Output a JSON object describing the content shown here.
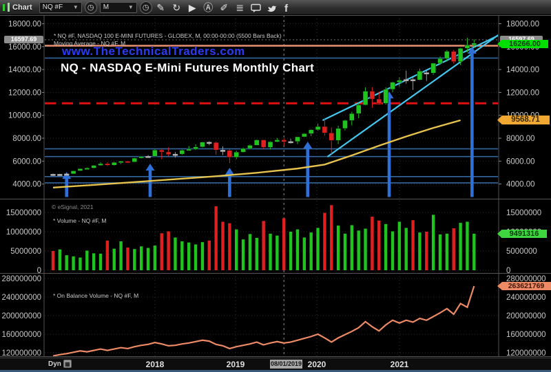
{
  "toolbar": {
    "app_label": "Chart",
    "symbol_value": "NQ #F",
    "interval_value": "M",
    "icons": [
      {
        "name": "symbol-lookup-icon",
        "glyph": "◷"
      },
      {
        "name": "interval-clock-icon",
        "glyph": "◷"
      },
      {
        "name": "draw-pencil-icon",
        "glyph": "✎"
      },
      {
        "name": "refresh-icon",
        "glyph": "↻"
      },
      {
        "name": "play-icon",
        "glyph": "▶"
      },
      {
        "name": "annotation-a-icon",
        "glyph": "Ⓐ"
      },
      {
        "name": "eraser-icon",
        "glyph": "✐"
      },
      {
        "name": "quote-list-icon",
        "glyph": "≣"
      },
      {
        "name": "chat-bubble-icon",
        "glyph": "svg-chat"
      },
      {
        "name": "twitter-icon",
        "glyph": "svg-twitter"
      },
      {
        "name": "facebook-icon",
        "glyph": "svg-facebook"
      }
    ]
  },
  "overlays": {
    "symbol_line": "* NQ #F, NASDAQ 100 E-MINI FUTURES - GLOBEX, M, 00:00-00:00 (5500 Bars Back)",
    "ma_line": "Moving Average - NQ #F, M",
    "website": "www.TheTechnicalTraders.com",
    "title": "NQ - NASDAQ E-Mini Futures Monthly Chart",
    "copyright": "© eSignal, 2021",
    "volume_label": "* Volume - NQ #F, M",
    "obv_label": "* On Balance Volume - NQ #F, M"
  },
  "badges": {
    "last_price": "16597.69",
    "alt_price": "16266.00",
    "ma_value": "9568.71",
    "volume_value": "9491316",
    "obv_value": "263621769",
    "date_selected": "08/01/2019"
  },
  "axes": {
    "price_ticks": [
      "18000.00",
      "16000.00",
      "14000.00",
      "12000.00",
      "10000.00",
      "8000.00",
      "6000.00",
      "4000.00"
    ],
    "volume_ticks": [
      "15000000",
      "10000000",
      "5000000",
      "0"
    ],
    "obv_ticks": [
      "280000000",
      "240000000",
      "200000000",
      "160000000",
      "120000000"
    ],
    "years": [
      "2018",
      "2019",
      "2020",
      "2021"
    ]
  },
  "bottom": {
    "dyn_label": "Dyn"
  },
  "colors": {
    "up": "#1fc41f",
    "down": "#e02020",
    "doji": "#b8b8b8",
    "ma": "#e6c34c",
    "obv_line": "#ee8a66",
    "channel": "#45c8f0",
    "support": "#33679f",
    "resistance_red": "#e01010",
    "resistance_salmon": "#e89070",
    "arrow": "#2f6fd8"
  },
  "chart_data": {
    "type": "candlestick",
    "title": "NQ - NASDAQ E-Mini Futures Monthly Chart",
    "symbol": "NQ #F",
    "interval": "Monthly",
    "start_month": "2016-10",
    "panes": [
      "price+moving-average",
      "volume",
      "on-balance-volume"
    ],
    "price_axis_ticks": [
      18000,
      16000,
      14000,
      12000,
      10000,
      8000,
      6000,
      4000
    ],
    "volume_axis_ticks_millions": [
      15,
      10,
      5,
      0
    ],
    "obv_axis_ticks_millions": [
      280,
      240,
      200,
      160,
      120
    ],
    "last_price": 16597.69,
    "alt_price": 16266.0,
    "ma_last": 9568.71,
    "volume_last": 9491316,
    "obv_last": 263621769,
    "candles": [
      [
        4860,
        4910,
        4700,
        4825
      ],
      [
        4825,
        4895,
        4745,
        4855
      ],
      [
        4855,
        4940,
        4800,
        4885
      ],
      [
        4885,
        5160,
        4875,
        5150
      ],
      [
        5150,
        5360,
        5140,
        5340
      ],
      [
        5340,
        5450,
        5290,
        5395
      ],
      [
        5395,
        5660,
        5350,
        5625
      ],
      [
        5625,
        5900,
        5600,
        5780
      ],
      [
        5780,
        5905,
        5555,
        5645
      ],
      [
        5645,
        5945,
        5605,
        5890
      ],
      [
        5890,
        6025,
        5750,
        5990
      ],
      [
        5990,
        6020,
        5830,
        5925
      ],
      [
        5925,
        6295,
        5915,
        6260
      ],
      [
        6260,
        6445,
        6230,
        6390
      ],
      [
        6390,
        6525,
        6320,
        6425
      ],
      [
        6425,
        7035,
        6415,
        6970
      ],
      [
        6970,
        7055,
        6165,
        6800
      ],
      [
        6800,
        7190,
        6445,
        6580
      ],
      [
        6580,
        6795,
        6310,
        6615
      ],
      [
        6615,
        7005,
        6550,
        6950
      ],
      [
        6950,
        7315,
        6930,
        7045
      ],
      [
        7045,
        7465,
        6980,
        7240
      ],
      [
        7240,
        7695,
        7190,
        7655
      ],
      [
        7655,
        7735,
        7380,
        7630
      ],
      [
        7630,
        7705,
        6575,
        6960
      ],
      [
        6960,
        7295,
        6530,
        6940
      ],
      [
        6940,
        7050,
        5820,
        6330
      ],
      [
        6330,
        6915,
        6165,
        6790
      ],
      [
        6790,
        7175,
        6740,
        7100
      ],
      [
        7100,
        7445,
        7030,
        7380
      ],
      [
        7380,
        7885,
        7370,
        7850
      ],
      [
        7850,
        7865,
        7050,
        7210
      ],
      [
        7210,
        7735,
        7010,
        7690
      ],
      [
        7690,
        8015,
        7640,
        7855
      ],
      [
        7855,
        7995,
        7360,
        7690
      ],
      [
        7690,
        7955,
        7540,
        7715
      ],
      [
        7715,
        8125,
        7490,
        8120
      ],
      [
        8120,
        8445,
        8100,
        8400
      ],
      [
        8400,
        8785,
        8180,
        8735
      ],
      [
        8735,
        9275,
        8660,
        9020
      ],
      [
        9020,
        9765,
        8220,
        8460
      ],
      [
        8460,
        8945,
        6630,
        7810
      ],
      [
        7810,
        9085,
        7490,
        8850
      ],
      [
        8850,
        9625,
        8680,
        9555
      ],
      [
        9555,
        10310,
        9110,
        10155
      ],
      [
        10155,
        11070,
        9740,
        10905
      ],
      [
        10905,
        12430,
        10870,
        12110
      ],
      [
        12110,
        12450,
        10660,
        11420
      ],
      [
        11420,
        12070,
        10920,
        11050
      ],
      [
        11050,
        12440,
        10940,
        12270
      ],
      [
        12270,
        12930,
        12030,
        12890
      ],
      [
        12890,
        13305,
        12500,
        13070
      ],
      [
        13100,
        13900,
        12760,
        13130
      ],
      [
        13130,
        13325,
        12210,
        13090
      ],
      [
        13090,
        14075,
        13050,
        13860
      ],
      [
        13730,
        13895,
        13000,
        13690
      ],
      [
        13690,
        14580,
        13540,
        14550
      ],
      [
        14550,
        15135,
        14430,
        14960
      ],
      [
        14960,
        15700,
        14700,
        15580
      ],
      [
        15580,
        15710,
        14510,
        14690
      ],
      [
        14690,
        15900,
        14385,
        15850
      ],
      [
        15850,
        16770,
        15495,
        16135
      ],
      [
        16135,
        16630,
        15940,
        16300
      ]
    ],
    "volume_millions": [
      5.0,
      5.4,
      3.9,
      3.6,
      3.3,
      5.1,
      4.4,
      4.3,
      7.7,
      5.6,
      7.5,
      5.9,
      5.5,
      6.2,
      5.8,
      6.4,
      9.6,
      10.1,
      8.5,
      7.5,
      7.2,
      6.7,
      7.3,
      7.7,
      16.6,
      12.6,
      12.2,
      10.6,
      8.0,
      9.4,
      8.4,
      12.8,
      9.5,
      9.0,
      13.5,
      10.0,
      10.6,
      8.5,
      9.8,
      11.0,
      14.9,
      16.9,
      11.6,
      9.5,
      11.7,
      10.3,
      10.8,
      13.9,
      12.9,
      12.0,
      10.1,
      12.6,
      11.0,
      13.0,
      9.8,
      10.0,
      14.4,
      9.3,
      9.5,
      10.9,
      12.3,
      12.6,
      9.49
    ],
    "obv_millions": [
      113,
      116,
      118,
      121,
      124,
      122,
      125,
      128,
      125,
      128,
      131,
      129,
      133,
      136,
      138,
      142,
      139,
      135,
      136,
      139,
      141,
      144,
      147,
      145,
      138,
      135,
      129,
      133,
      136,
      139,
      143,
      137,
      141,
      144,
      141,
      143,
      147,
      151,
      155,
      160,
      152,
      143,
      152,
      159,
      166,
      174,
      187,
      176,
      167,
      180,
      190,
      184,
      190,
      186,
      194,
      190,
      198,
      206,
      215,
      203,
      226,
      218,
      263.62
    ],
    "ma_anchors": [
      [
        0,
        3690
      ],
      [
        6,
        3920
      ],
      [
        12,
        4170
      ],
      [
        18,
        4420
      ],
      [
        24,
        4680
      ],
      [
        30,
        4980
      ],
      [
        36,
        5350
      ],
      [
        40,
        5700
      ],
      [
        44,
        6500
      ],
      [
        48,
        7350
      ],
      [
        52,
        8150
      ],
      [
        56,
        8900
      ],
      [
        60,
        9569
      ]
    ],
    "levels": {
      "salmon_resistance": 16080,
      "red_dashed_resistance": 11050,
      "blue_support": [
        15000,
        7070,
        6400,
        4650,
        4100
      ]
    },
    "channel_lines": [
      [
        [
          39.7,
          9560
        ],
        [
          72.6,
          18990
        ]
      ],
      [
        [
          40.4,
          6380
        ],
        [
          70.8,
          19230
        ]
      ]
    ],
    "arrows": [
      [
        2.0,
        5050
      ],
      [
        14.3,
        5780
      ],
      [
        26.0,
        5420
      ],
      [
        37.5,
        7700
      ],
      [
        49.5,
        12080
      ],
      [
        61.7,
        15990
      ]
    ],
    "selected_date_index": 34
  }
}
